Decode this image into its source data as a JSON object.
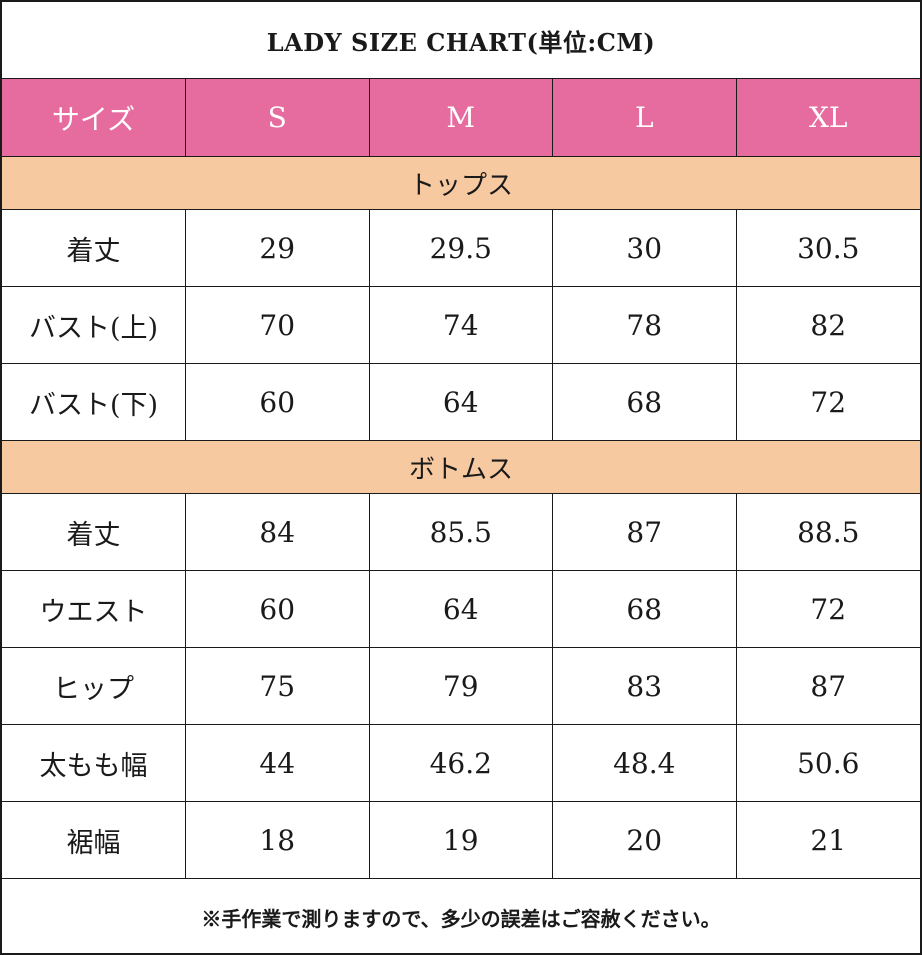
{
  "title": "LADY SIZE CHART(単位:CM)",
  "headers": [
    "サイズ",
    "S",
    "M",
    "L",
    "XL"
  ],
  "sections": [
    {
      "name": "トップス",
      "rows": [
        {
          "label": "着丈",
          "values": [
            "29",
            "29.5",
            "30",
            "30.5"
          ]
        },
        {
          "label": "バスト(上)",
          "values": [
            "70",
            "74",
            "78",
            "82"
          ]
        },
        {
          "label": "バスト(下)",
          "values": [
            "60",
            "64",
            "68",
            "72"
          ]
        }
      ]
    },
    {
      "name": "ボトムス",
      "rows": [
        {
          "label": "着丈",
          "values": [
            "84",
            "85.5",
            "87",
            "88.5"
          ]
        },
        {
          "label": "ウエスト",
          "values": [
            "60",
            "64",
            "68",
            "72"
          ]
        },
        {
          "label": "ヒップ",
          "values": [
            "75",
            "79",
            "83",
            "87"
          ]
        },
        {
          "label": "太もも幅",
          "values": [
            "44",
            "46.2",
            "48.4",
            "50.6"
          ]
        },
        {
          "label": "裾幅",
          "values": [
            "18",
            "19",
            "20",
            "21"
          ]
        }
      ]
    }
  ],
  "note": "※手作業で測りますので、多少の誤差はご容赦ください。",
  "colors": {
    "header_bg": "#e66b9e",
    "section_bg": "#f7c9a1",
    "border": "#1a1a1a"
  }
}
